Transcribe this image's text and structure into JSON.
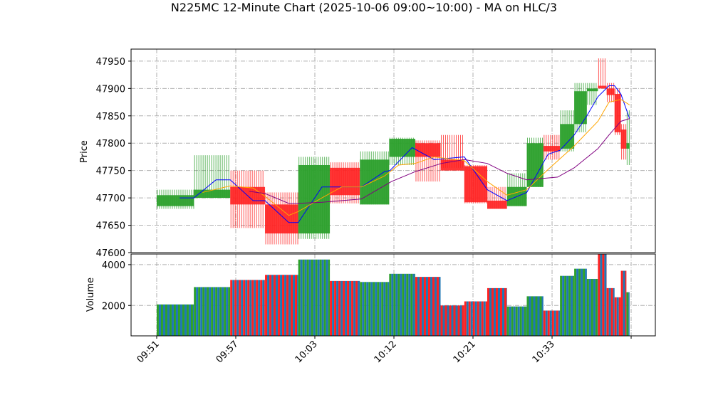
{
  "chart_data": [
    {
      "type": "ohlc-block",
      "title": "N225MC 12-Minute Chart (2025-10-06 09:00~10:00) - MA on HLC/3",
      "ylabel": "Price",
      "ylim": [
        47600,
        47972
      ],
      "yticks": [
        47600,
        47650,
        47700,
        47750,
        47800,
        47850,
        47900,
        47950
      ],
      "xlim": [
        -0.324,
        6.306
      ],
      "xticks": [
        0,
        1,
        2,
        3,
        4,
        5,
        6
      ],
      "xticklabels": [
        "09:51",
        "09:57",
        "10:03",
        "10:12",
        "10:21",
        "10:33",
        ""
      ],
      "grid": true,
      "up_color": "#2ca02c",
      "down_color": "#ff2020",
      "blocks": [
        {
          "x0": 0,
          "x1": 0.47,
          "open": 47685,
          "high": 47715,
          "low": 47680,
          "close": 47705
        },
        {
          "x0": 0.47,
          "x1": 0.93,
          "open": 47700,
          "high": 47778,
          "low": 47700,
          "close": 47715
        },
        {
          "x0": 0.93,
          "x1": 1.37,
          "open": 47720,
          "high": 47750,
          "low": 47645,
          "close": 47688
        },
        {
          "x0": 1.37,
          "x1": 1.79,
          "open": 47688,
          "high": 47710,
          "low": 47615,
          "close": 47635
        },
        {
          "x0": 1.79,
          "x1": 2.19,
          "open": 47635,
          "high": 47775,
          "low": 47625,
          "close": 47760
        },
        {
          "x0": 2.19,
          "x1": 2.57,
          "open": 47755,
          "high": 47765,
          "low": 47690,
          "close": 47705
        },
        {
          "x0": 2.57,
          "x1": 2.94,
          "open": 47688,
          "high": 47785,
          "low": 47688,
          "close": 47770
        },
        {
          "x0": 2.94,
          "x1": 3.27,
          "open": 47775,
          "high": 47810,
          "low": 47760,
          "close": 47808
        },
        {
          "x0": 3.27,
          "x1": 3.59,
          "open": 47800,
          "high": 47805,
          "low": 47730,
          "close": 47775
        },
        {
          "x0": 3.59,
          "x1": 3.89,
          "open": 47770,
          "high": 47815,
          "low": 47755,
          "close": 47750
        },
        {
          "x0": 3.89,
          "x1": 4.18,
          "open": 47758,
          "high": 47760,
          "low": 47690,
          "close": 47692
        },
        {
          "x0": 4.18,
          "x1": 4.43,
          "open": 47695,
          "high": 47720,
          "low": 47680,
          "close": 47680
        },
        {
          "x0": 4.43,
          "x1": 4.68,
          "open": 47685,
          "high": 47745,
          "low": 47685,
          "close": 47720
        },
        {
          "x0": 4.68,
          "x1": 4.89,
          "open": 47720,
          "high": 47810,
          "low": 47720,
          "close": 47800
        },
        {
          "x0": 4.89,
          "x1": 5.1,
          "open": 47795,
          "high": 47815,
          "low": 47770,
          "close": 47785
        },
        {
          "x0": 5.1,
          "x1": 5.28,
          "open": 47790,
          "high": 47860,
          "low": 47785,
          "close": 47835
        },
        {
          "x0": 5.28,
          "x1": 5.44,
          "open": 47835,
          "high": 47910,
          "low": 47820,
          "close": 47895
        },
        {
          "x0": 5.44,
          "x1": 5.58,
          "open": 47895,
          "high": 47910,
          "low": 47870,
          "close": 47900
        },
        {
          "x0": 5.58,
          "x1": 5.69,
          "open": 47905,
          "high": 47955,
          "low": 47900,
          "close": 47900
        },
        {
          "x0": 5.69,
          "x1": 5.79,
          "open": 47900,
          "high": 47910,
          "low": 47875,
          "close": 47888
        },
        {
          "x0": 5.79,
          "x1": 5.87,
          "open": 47890,
          "high": 47900,
          "low": 47815,
          "close": 47820
        },
        {
          "x0": 5.87,
          "x1": 5.94,
          "open": 47825,
          "high": 47835,
          "low": 47770,
          "close": 47790
        },
        {
          "x0": 5.94,
          "x1": 5.98,
          "open": 47790,
          "high": 47860,
          "low": 47760,
          "close": 47800
        }
      ],
      "series": [
        {
          "name": "MA short",
          "color": "#0000ff",
          "x": [
            0.29,
            0.47,
            0.75,
            0.93,
            1.22,
            1.37,
            1.67,
            1.79,
            2.09,
            2.59,
            2.88,
            2.95,
            3.23,
            3.51,
            3.89,
            4.18,
            4.43,
            4.68,
            4.95,
            5.1,
            5.28,
            5.44,
            5.58,
            5.72,
            5.79,
            5.87,
            5.98
          ],
          "y": [
            47700,
            47700,
            47733,
            47733,
            47695,
            47695,
            47655,
            47655,
            47720,
            47720,
            47748,
            47750,
            47792,
            47770,
            47775,
            47715,
            47695,
            47710,
            47780,
            47787,
            47815,
            47850,
            47885,
            47905,
            47905,
            47890,
            47845
          ]
        },
        {
          "name": "MA mid",
          "color": "#ffa500",
          "x": [
            0.58,
            0.93,
            1.22,
            1.37,
            1.67,
            1.79,
            2.09,
            2.34,
            2.59,
            2.88,
            3.06,
            3.27,
            3.51,
            3.89,
            4.18,
            4.43,
            4.68,
            4.95,
            5.28,
            5.58,
            5.72,
            5.87,
            5.98
          ],
          "y": [
            47710,
            47722,
            47718,
            47703,
            47668,
            47675,
            47700,
            47720,
            47720,
            47740,
            47760,
            47763,
            47775,
            47768,
            47730,
            47705,
            47715,
            47752,
            47795,
            47840,
            47875,
            47880,
            47870
          ]
        },
        {
          "name": "MA long",
          "color": "#800080",
          "x": [
            1.17,
            1.37,
            1.67,
            1.79,
            2.09,
            2.59,
            2.97,
            3.27,
            3.6,
            3.89,
            4.18,
            4.43,
            4.68,
            5.07,
            5.28,
            5.58,
            5.72,
            5.87,
            5.98
          ],
          "y": [
            47712,
            47708,
            47690,
            47690,
            47692,
            47698,
            47730,
            47748,
            47763,
            47770,
            47763,
            47745,
            47733,
            47738,
            47755,
            47790,
            47815,
            47840,
            47845
          ]
        }
      ]
    },
    {
      "type": "bar",
      "ylabel": "Volume",
      "ylim": [
        510,
        4520
      ],
      "yticks": [
        2000,
        4000
      ],
      "alt_color": "#1f77b4",
      "values": [
        2050,
        2900,
        3250,
        3500,
        4250,
        3200,
        3150,
        3550,
        3400,
        2000,
        2200,
        2850,
        1950,
        2450,
        1750,
        3450,
        3800,
        3300,
        4600,
        2850,
        2400,
        3700,
        2650
      ]
    }
  ]
}
